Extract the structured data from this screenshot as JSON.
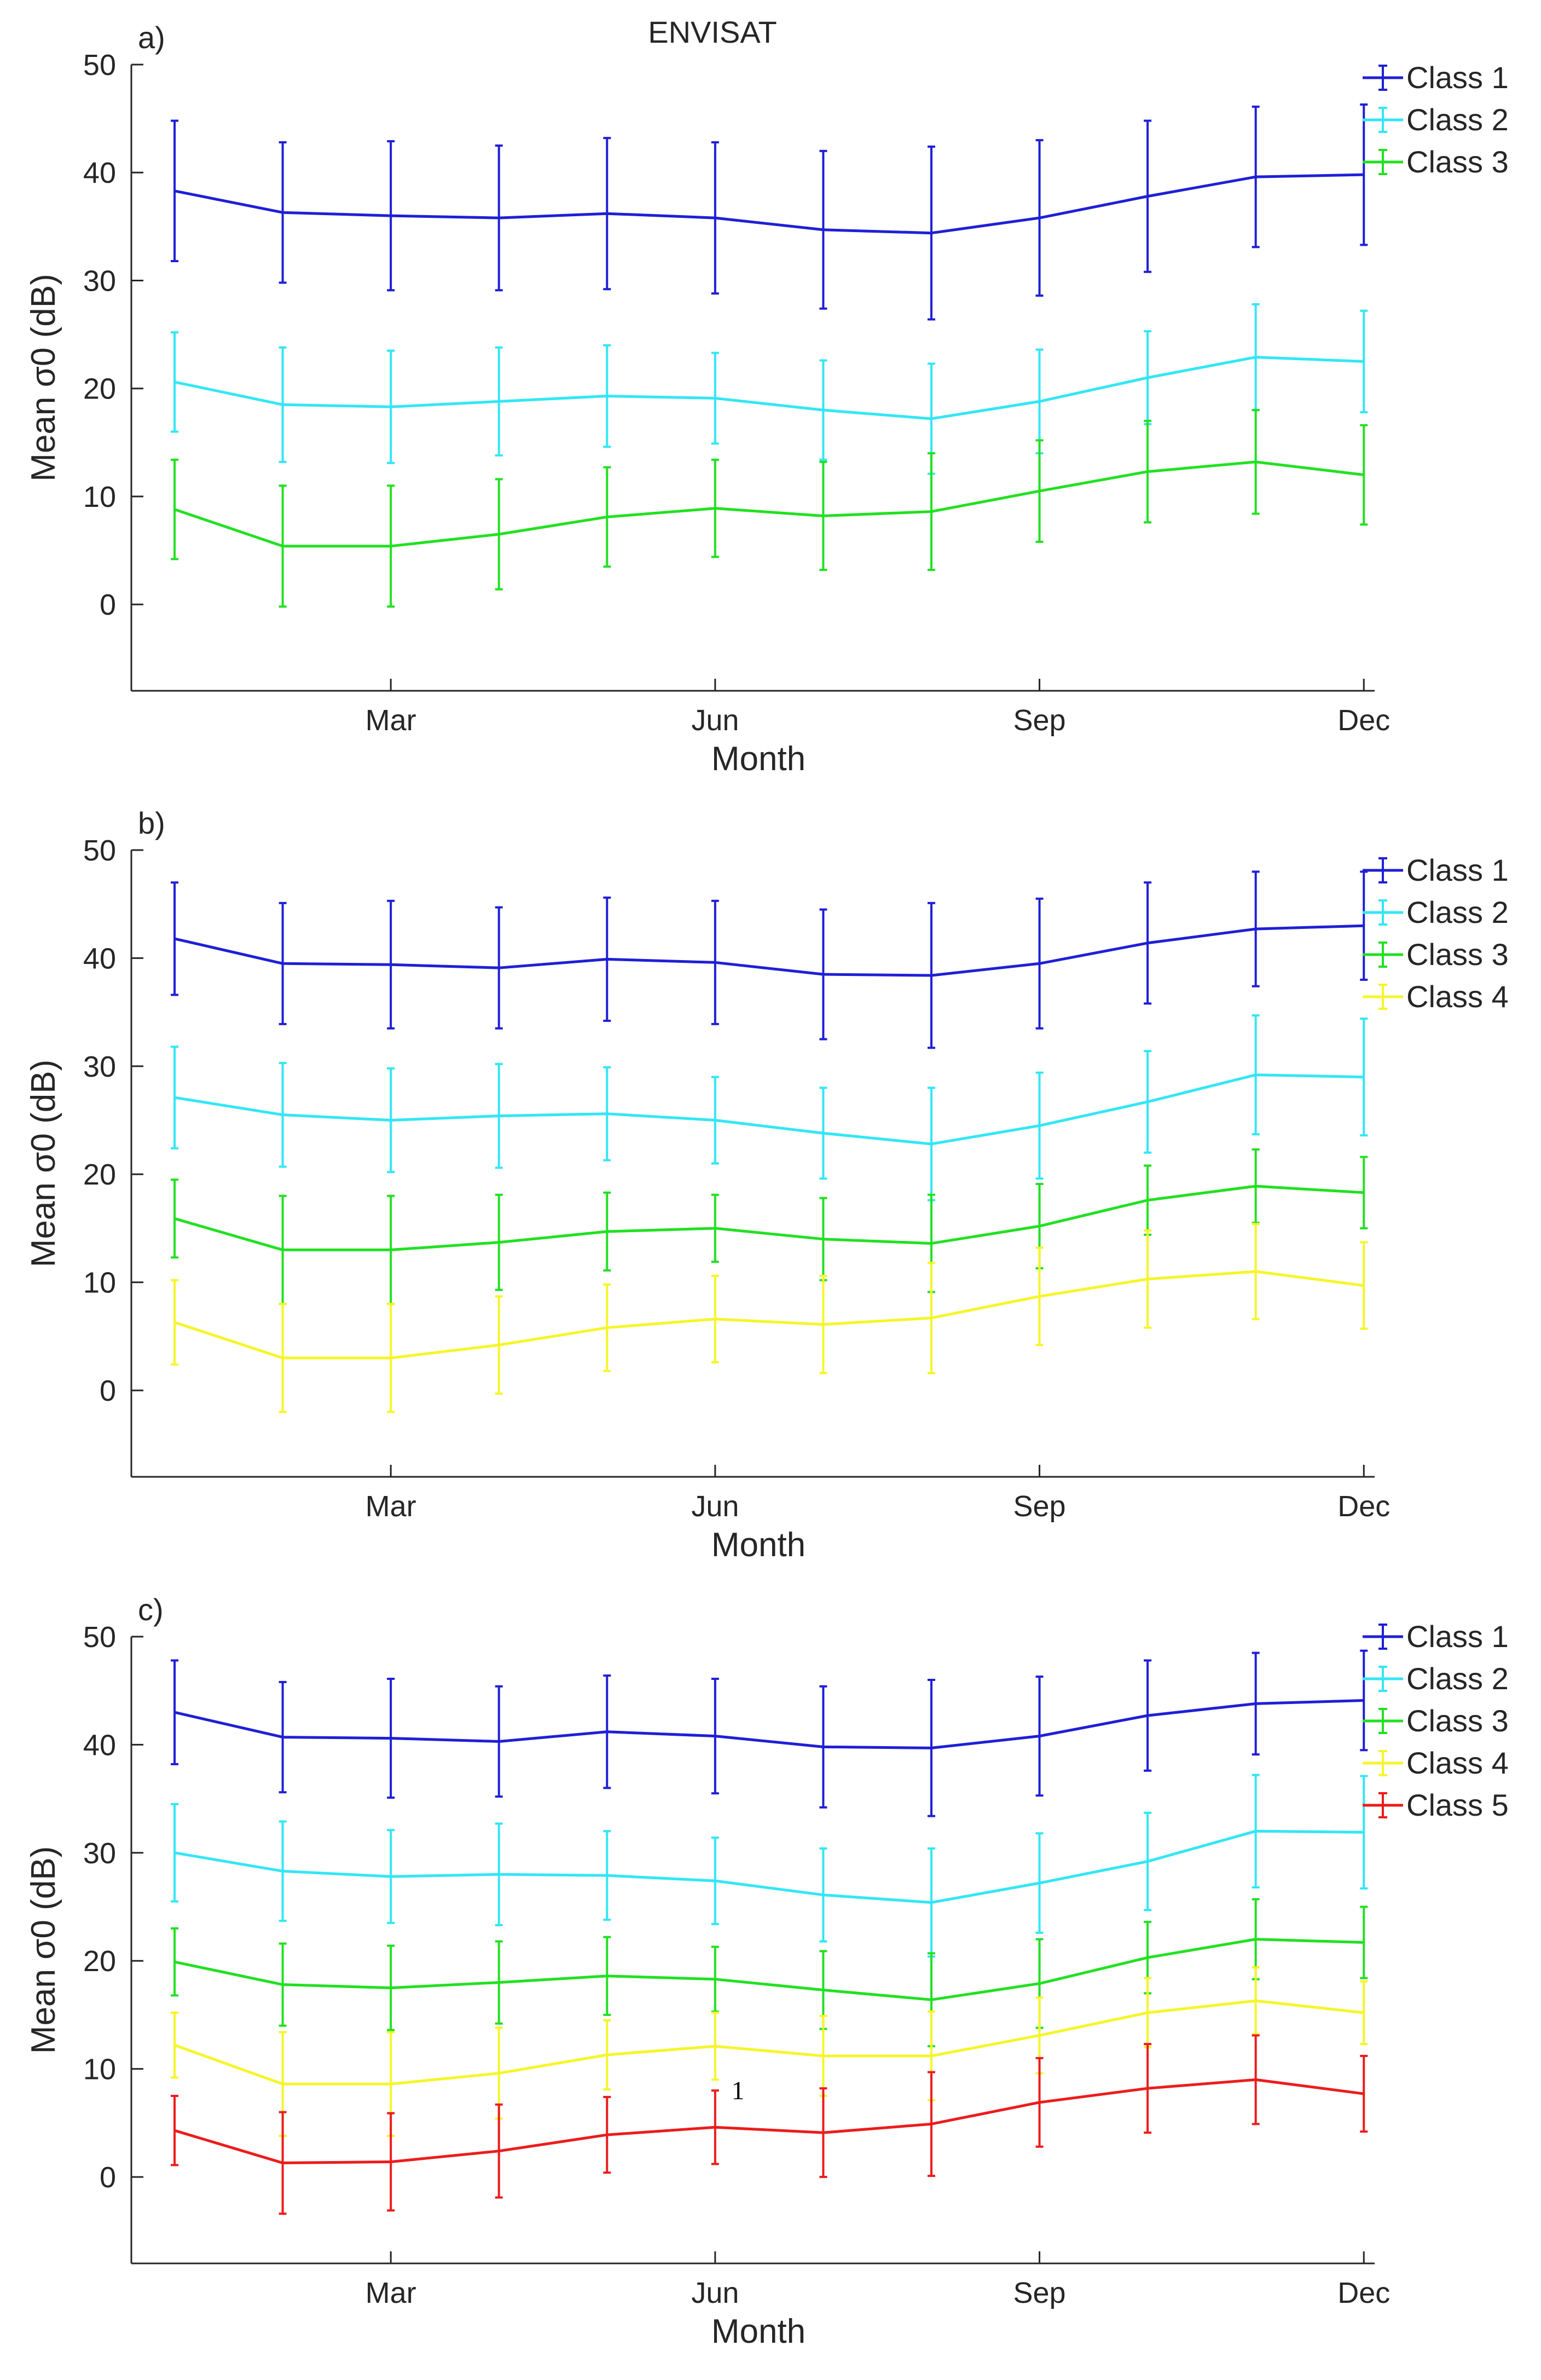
{
  "title": "ENVISAT",
  "colors": {
    "Class 1": "#1f1fd6",
    "Class 2": "#33e6f5",
    "Class 3": "#22e022",
    "Class 4": "#f5f52a",
    "Class 5": "#ec1c1c"
  },
  "chart_data": [
    {
      "panel": "a)",
      "type": "line",
      "title": "ENVISAT",
      "xlabel": "Month",
      "ylabel": "Mean σ0 (dB)",
      "ylim": [
        -8,
        50
      ],
      "xlim": [
        0.6,
        12.1
      ],
      "yticks": [
        0,
        10,
        20,
        30,
        40,
        50
      ],
      "xticks": [
        {
          "x": 3,
          "label": "Mar"
        },
        {
          "x": 6,
          "label": "Jun"
        },
        {
          "x": 9,
          "label": "Sep"
        },
        {
          "x": 12,
          "label": "Dec"
        }
      ],
      "legend": "top-right",
      "grid": false,
      "x": [
        1,
        2,
        3,
        4,
        5,
        6,
        7,
        8,
        9,
        10,
        11,
        12
      ],
      "series": [
        {
          "name": "Class 1",
          "values": [
            38.3,
            36.3,
            36.0,
            35.8,
            36.2,
            35.8,
            34.7,
            34.4,
            35.8,
            37.8,
            39.6,
            39.8
          ],
          "error": [
            6.5,
            6.5,
            6.9,
            6.7,
            7.0,
            7.0,
            7.3,
            8.0,
            7.2,
            7.0,
            6.5,
            6.5
          ]
        },
        {
          "name": "Class 2",
          "values": [
            20.6,
            18.5,
            18.3,
            18.8,
            19.3,
            19.1,
            18.0,
            17.2,
            18.8,
            21.0,
            22.9,
            22.5
          ],
          "error": [
            4.6,
            5.3,
            5.2,
            5.0,
            4.7,
            4.2,
            4.6,
            5.1,
            4.8,
            4.3,
            4.9,
            4.7
          ]
        },
        {
          "name": "Class 3",
          "values": [
            8.8,
            5.4,
            5.4,
            6.5,
            8.1,
            8.9,
            8.2,
            8.6,
            10.5,
            12.3,
            13.2,
            12.0
          ],
          "error": [
            4.6,
            5.6,
            5.6,
            5.1,
            4.6,
            4.5,
            5.0,
            5.4,
            4.7,
            4.7,
            4.8,
            4.6
          ]
        }
      ]
    },
    {
      "panel": "b)",
      "type": "line",
      "title": "",
      "xlabel": "Month",
      "ylabel": "Mean σ0 (dB)",
      "ylim": [
        -8,
        50
      ],
      "xlim": [
        0.6,
        12.1
      ],
      "yticks": [
        0,
        10,
        20,
        30,
        40,
        50
      ],
      "xticks": [
        {
          "x": 3,
          "label": "Mar"
        },
        {
          "x": 6,
          "label": "Jun"
        },
        {
          "x": 9,
          "label": "Sep"
        },
        {
          "x": 12,
          "label": "Dec"
        }
      ],
      "legend": "top-right",
      "grid": false,
      "x": [
        1,
        2,
        3,
        4,
        5,
        6,
        7,
        8,
        9,
        10,
        11,
        12
      ],
      "series": [
        {
          "name": "Class 1",
          "values": [
            41.8,
            39.5,
            39.4,
            39.1,
            39.9,
            39.6,
            38.5,
            38.4,
            39.5,
            41.4,
            42.7,
            43.0
          ],
          "error": [
            5.2,
            5.6,
            5.9,
            5.6,
            5.7,
            5.7,
            6.0,
            6.7,
            6.0,
            5.6,
            5.3,
            5.0
          ]
        },
        {
          "name": "Class 2",
          "values": [
            27.1,
            25.5,
            25.0,
            25.4,
            25.6,
            25.0,
            23.8,
            22.8,
            24.5,
            26.7,
            29.2,
            29.0
          ],
          "error": [
            4.7,
            4.8,
            4.8,
            4.8,
            4.3,
            4.0,
            4.2,
            5.2,
            4.9,
            4.7,
            5.5,
            5.4
          ]
        },
        {
          "name": "Class 3",
          "values": [
            15.9,
            13.0,
            13.0,
            13.7,
            14.7,
            15.0,
            14.0,
            13.6,
            15.2,
            17.6,
            18.9,
            18.3
          ],
          "error": [
            3.6,
            5.0,
            5.0,
            4.4,
            3.6,
            3.1,
            3.8,
            4.5,
            3.9,
            3.2,
            3.4,
            3.3
          ]
        },
        {
          "name": "Class 4",
          "values": [
            6.3,
            3.0,
            3.0,
            4.2,
            5.8,
            6.6,
            6.1,
            6.7,
            8.7,
            10.3,
            11.0,
            9.7
          ],
          "error": [
            3.9,
            5.0,
            5.0,
            4.5,
            4.0,
            4.0,
            4.5,
            5.1,
            4.5,
            4.5,
            4.4,
            4.0
          ]
        }
      ]
    },
    {
      "panel": "c)",
      "type": "line",
      "title": "",
      "xlabel": "Month",
      "ylabel": "Mean σ0 (dB)",
      "ylim": [
        -8,
        50
      ],
      "xlim": [
        0.6,
        12.1
      ],
      "yticks": [
        0,
        10,
        20,
        30,
        40,
        50
      ],
      "xticks": [
        {
          "x": 3,
          "label": "Mar"
        },
        {
          "x": 6,
          "label": "Jun"
        },
        {
          "x": 9,
          "label": "Sep"
        },
        {
          "x": 12,
          "label": "Dec"
        }
      ],
      "legend": "top-right",
      "grid": false,
      "annotations": [
        {
          "text": "1",
          "x": 6.15,
          "y": 7.2
        }
      ],
      "x": [
        1,
        2,
        3,
        4,
        5,
        6,
        7,
        8,
        9,
        10,
        11,
        12
      ],
      "series": [
        {
          "name": "Class 1",
          "values": [
            43.0,
            40.7,
            40.6,
            40.3,
            41.2,
            40.8,
            39.8,
            39.7,
            40.8,
            42.7,
            43.8,
            44.1
          ],
          "error": [
            4.8,
            5.1,
            5.5,
            5.1,
            5.2,
            5.3,
            5.6,
            6.3,
            5.5,
            5.1,
            4.7,
            4.6
          ]
        },
        {
          "name": "Class 2",
          "values": [
            30.0,
            28.3,
            27.8,
            28.0,
            27.9,
            27.4,
            26.1,
            25.4,
            27.2,
            29.2,
            32.0,
            31.9
          ],
          "error": [
            4.5,
            4.6,
            4.3,
            4.7,
            4.1,
            4.0,
            4.3,
            5.0,
            4.6,
            4.5,
            5.2,
            5.2
          ]
        },
        {
          "name": "Class 3",
          "values": [
            19.9,
            17.8,
            17.5,
            18.0,
            18.6,
            18.3,
            17.3,
            16.4,
            17.9,
            20.3,
            22.0,
            21.7
          ],
          "error": [
            3.1,
            3.8,
            3.9,
            3.8,
            3.6,
            3.0,
            3.6,
            4.3,
            4.1,
            3.3,
            3.7,
            3.3
          ]
        },
        {
          "name": "Class 4",
          "values": [
            12.2,
            8.6,
            8.6,
            9.6,
            11.3,
            12.1,
            11.2,
            11.2,
            13.1,
            15.2,
            16.3,
            15.2
          ],
          "error": [
            3.0,
            4.8,
            4.8,
            4.2,
            3.2,
            3.1,
            3.7,
            4.1,
            3.5,
            3.2,
            3.1,
            2.9
          ]
        },
        {
          "name": "Class 5",
          "values": [
            4.3,
            1.3,
            1.4,
            2.4,
            3.9,
            4.6,
            4.1,
            4.9,
            6.9,
            8.2,
            9.0,
            7.7
          ],
          "error": [
            3.2,
            4.7,
            4.5,
            4.3,
            3.5,
            3.4,
            4.1,
            4.8,
            4.1,
            4.1,
            4.1,
            3.5
          ]
        }
      ]
    }
  ]
}
